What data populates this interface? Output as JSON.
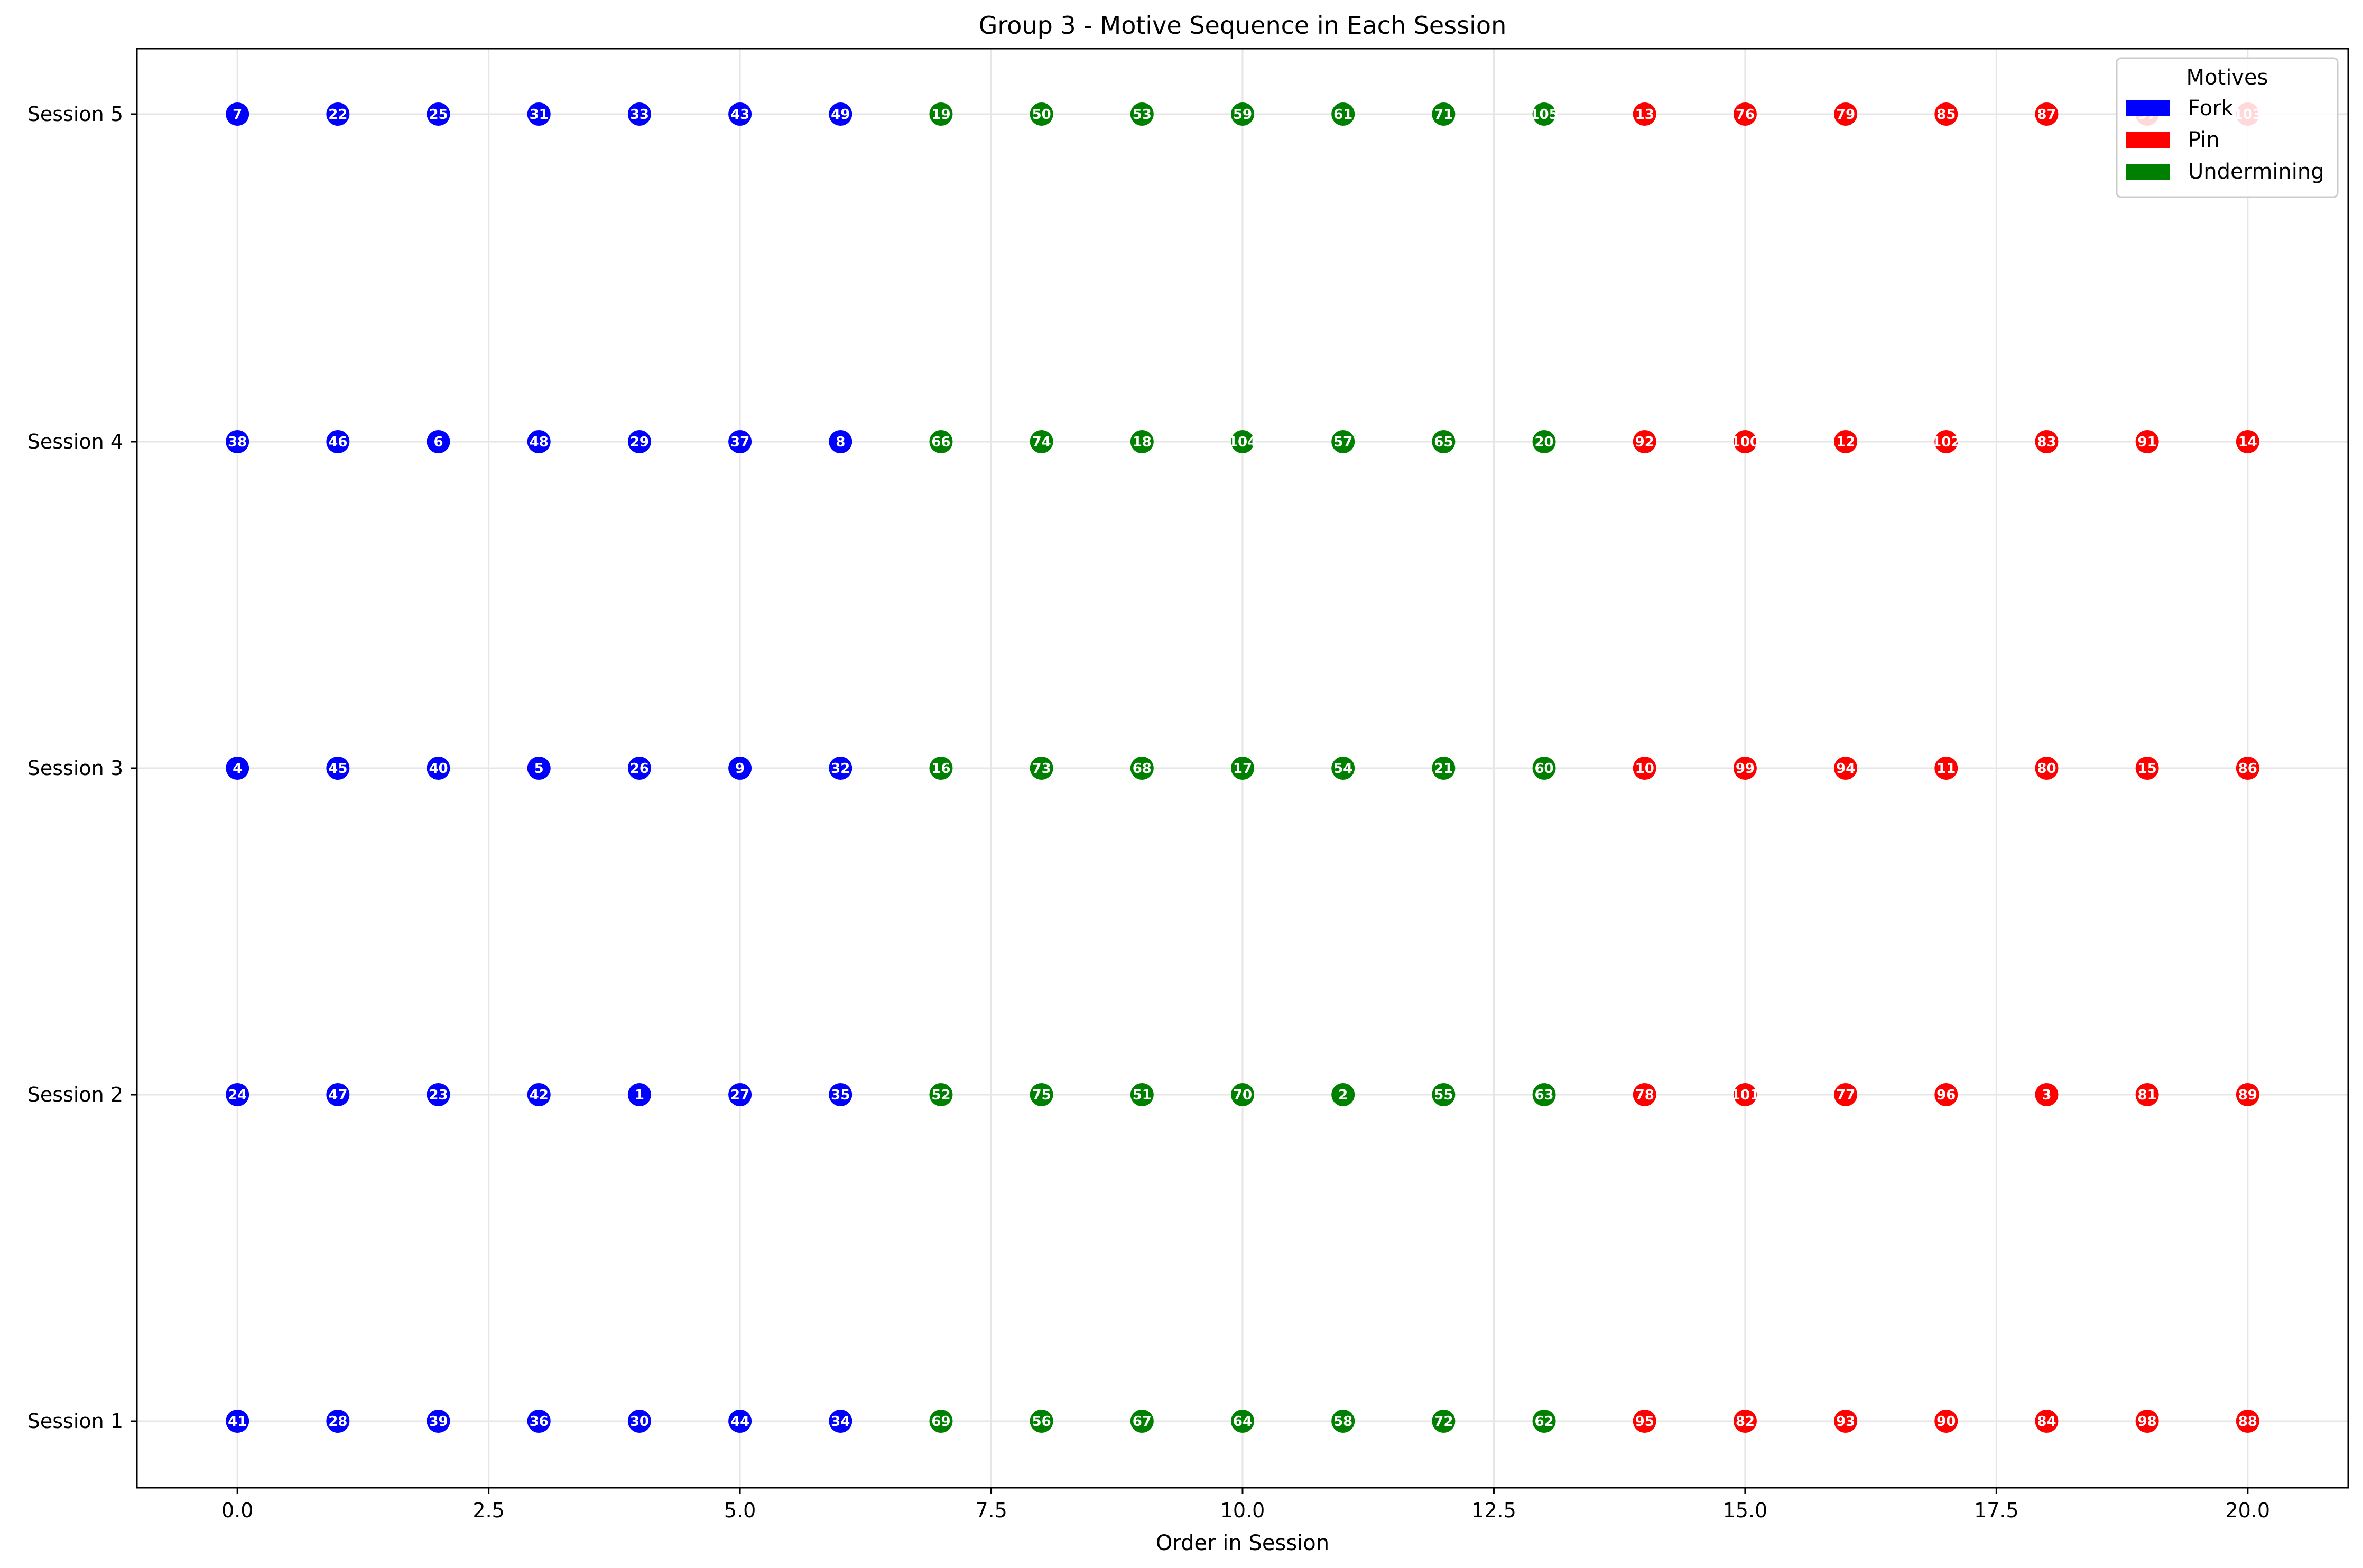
{
  "chart_data": {
    "type": "scatter",
    "title": "Group 3 - Motive Sequence in Each Session",
    "xlabel": "Order in Session",
    "ylabel": "",
    "xlim": [
      -1,
      21
    ],
    "x_ticks": [
      0.0,
      2.5,
      5.0,
      7.5,
      10.0,
      12.5,
      15.0,
      17.5,
      20.0
    ],
    "x_tick_labels": [
      "0.0",
      "2.5",
      "5.0",
      "7.5",
      "10.0",
      "12.5",
      "15.0",
      "17.5",
      "20.0"
    ],
    "y_tick_labels": [
      "Session 1",
      "Session 2",
      "Session 3",
      "Session 4",
      "Session 5"
    ],
    "grid": true,
    "legend": {
      "title": "Motives",
      "placement": "top-right",
      "entries": [
        {
          "name": "Fork",
          "color": "#0000ff"
        },
        {
          "name": "Pin",
          "color": "#ff0000"
        },
        {
          "name": "Undermining",
          "color": "#008000"
        }
      ]
    },
    "motive_pattern": [
      "Fork",
      "Fork",
      "Fork",
      "Fork",
      "Fork",
      "Fork",
      "Fork",
      "Undermining",
      "Undermining",
      "Undermining",
      "Undermining",
      "Undermining",
      "Undermining",
      "Undermining",
      "Pin",
      "Pin",
      "Pin",
      "Pin",
      "Pin",
      "Pin",
      "Pin"
    ],
    "sessions": [
      {
        "name": "Session 1",
        "ids": [
          "41",
          "28",
          "39",
          "36",
          "30",
          "44",
          "34",
          "69",
          "56",
          "67",
          "64",
          "58",
          "72",
          "62",
          "95",
          "82",
          "93",
          "90",
          "84",
          "98",
          "88"
        ]
      },
      {
        "name": "Session 2",
        "ids": [
          "24",
          "47",
          "23",
          "42",
          "1",
          "27",
          "35",
          "52",
          "75",
          "51",
          "70",
          "2",
          "55",
          "63",
          "78",
          "101",
          "77",
          "96",
          "3",
          "81",
          "89"
        ]
      },
      {
        "name": "Session 3",
        "ids": [
          "4",
          "45",
          "40",
          "5",
          "26",
          "9",
          "32",
          "16",
          "73",
          "68",
          "17",
          "54",
          "21",
          "60",
          "10",
          "99",
          "94",
          "11",
          "80",
          "15",
          "86"
        ]
      },
      {
        "name": "Session 4",
        "ids": [
          "38",
          "46",
          "6",
          "48",
          "29",
          "37",
          "8",
          "66",
          "74",
          "18",
          "104",
          "57",
          "65",
          "20",
          "92",
          "100",
          "12",
          "102",
          "83",
          "91",
          "14"
        ]
      },
      {
        "name": "Session 5",
        "ids": [
          "7",
          "22",
          "25",
          "31",
          "33",
          "43",
          "49",
          "19",
          "50",
          "53",
          "59",
          "61",
          "71",
          "105",
          "13",
          "76",
          "79",
          "85",
          "87",
          "97",
          "103"
        ]
      }
    ]
  }
}
